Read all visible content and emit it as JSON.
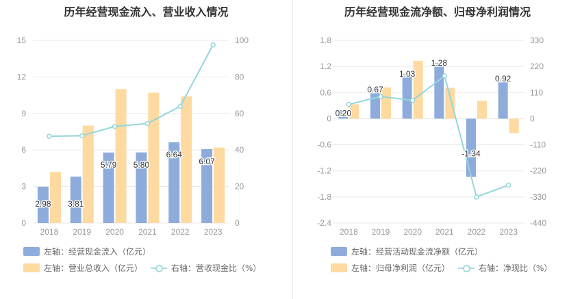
{
  "colors": {
    "bar_blue": "#8eacdb",
    "bar_orange": "#fed9a0",
    "line_teal": "#93d6dc",
    "axis_text": "#999999",
    "grid": "#e8e8e8"
  },
  "chart_data": [
    {
      "type": "bar",
      "title": "历年经营现金流入、营业收入情况",
      "categories": [
        "2018",
        "2019",
        "2020",
        "2021",
        "2022",
        "2023"
      ],
      "y_left": {
        "ylim": [
          0,
          15
        ],
        "ticks": [
          "0",
          "3",
          "6",
          "9",
          "12",
          "15"
        ]
      },
      "y_right": {
        "ylim": [
          0,
          100
        ],
        "ticks": [
          "0",
          "20",
          "40",
          "60",
          "80",
          "100"
        ]
      },
      "series": [
        {
          "name": "左轴：经营现金流入（亿元）",
          "axis": "left",
          "kind": "bar",
          "color": "#8eacdb",
          "values": [
            2.98,
            3.81,
            5.79,
            5.8,
            6.64,
            6.07
          ],
          "labels": [
            "2.98",
            "3.81",
            "5.79",
            "5.80",
            "6.64",
            "6.07"
          ]
        },
        {
          "name": "左轴：营业总收入（亿元）",
          "axis": "left",
          "kind": "bar",
          "color": "#fed9a0",
          "values": [
            4.2,
            8.0,
            11.0,
            10.7,
            10.4,
            6.2
          ]
        },
        {
          "name": "右轴：营收现金比（%）",
          "axis": "right",
          "kind": "line",
          "color": "#93d6dc",
          "values": [
            47.5,
            47.8,
            52.9,
            54.5,
            63.9,
            97.5
          ]
        }
      ],
      "legend": {
        "placement": "bottom-left"
      },
      "grid": true
    },
    {
      "type": "bar",
      "title": "历年经营现金流净额、归母净利润情况",
      "categories": [
        "2018",
        "2019",
        "2020",
        "2021",
        "2022",
        "2023"
      ],
      "y_left": {
        "ylim": [
          -2.4,
          1.8
        ],
        "ticks": [
          "-2.4",
          "-1.8",
          "-1.2",
          "-0.6",
          "0",
          "0.6",
          "1.2",
          "1.8"
        ]
      },
      "y_right": {
        "ylim": [
          -440,
          330
        ],
        "ticks": [
          "-440",
          "-330",
          "-220",
          "-110",
          "0",
          "110",
          "220",
          "330"
        ]
      },
      "series": [
        {
          "name": "左轴：经营活动现金流净额（亿元）",
          "axis": "left",
          "kind": "bar",
          "color": "#8eacdb",
          "values": [
            0.2,
            0.67,
            1.03,
            1.28,
            -1.34,
            0.92
          ],
          "labels": [
            "0.20",
            "0.67",
            "1.03",
            "1.28",
            "-1.34",
            "0.92"
          ]
        },
        {
          "name": "左轴：归母净利润（亿元）",
          "axis": "left",
          "kind": "bar",
          "color": "#fed9a0",
          "values": [
            0.33,
            0.72,
            1.33,
            0.71,
            0.41,
            -0.33
          ]
        },
        {
          "name": "右轴：净现比（%）",
          "axis": "right",
          "kind": "line",
          "color": "#93d6dc",
          "values": [
            60,
            93,
            77,
            180,
            -330,
            -280
          ]
        }
      ],
      "legend": {
        "placement": "bottom-left"
      },
      "grid": true
    }
  ]
}
